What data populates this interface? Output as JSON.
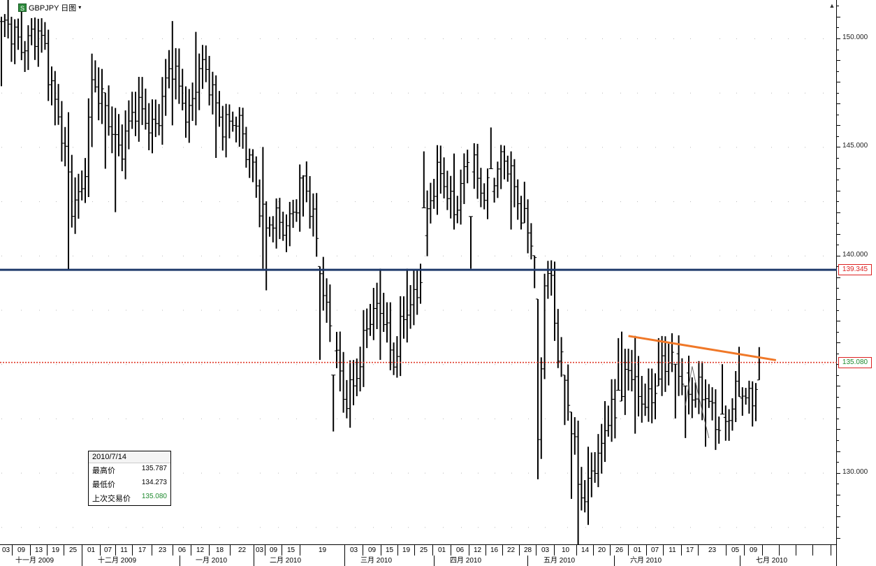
{
  "header": {
    "symbol_label": "GBPJPY 日图",
    "dropdown_caret": "▾",
    "icon_glyph": "S",
    "corner_icon": "▲"
  },
  "chart_data": {
    "type": "ohlc",
    "symbol": "GBPJPY",
    "period": "日图",
    "y_ticks": [
      "150.000",
      "145.000",
      "140.000",
      "130.000"
    ],
    "ylim": [
      126.4,
      152.4
    ],
    "horizontal_lines": [
      {
        "value": 139.345,
        "label": "139.345",
        "color": "#1f3a6b",
        "style": "solid"
      },
      {
        "value": 135.08,
        "label": "135.080",
        "color": "#e03a2a",
        "style": "dotted"
      }
    ],
    "trendline": {
      "start": {
        "day": 187,
        "price": 136.3
      },
      "end": {
        "day": 226,
        "price": 135.25
      },
      "color": "#f07828"
    },
    "x_day_labels": [
      "03",
      "09",
      "13",
      "19",
      "25",
      "01",
      "07",
      "11",
      "17",
      "23",
      "06",
      "12",
      "18",
      "22",
      "03",
      "09",
      "15",
      "19",
      "03",
      "09",
      "15",
      "19",
      "25",
      "01",
      "06",
      "12",
      "16",
      "22",
      "28",
      "03",
      "10",
      "14",
      "20",
      "26",
      "01",
      "07",
      "11",
      "17",
      "23",
      "05",
      "09"
    ],
    "x_month_labels": [
      "十一月 2009",
      "十二月 2009",
      "一月 2010",
      "二月 2010",
      "三月 2010",
      "四月 2010",
      "五月 2010",
      "六月 2010",
      "七月 2010"
    ],
    "bar_count": 226,
    "anchors": [
      [
        0,
        150.0
      ],
      [
        4,
        150.5
      ],
      [
        8,
        149.8
      ],
      [
        13,
        149.6
      ],
      [
        17,
        146.8
      ],
      [
        21,
        141.8
      ],
      [
        24,
        143.2
      ],
      [
        27,
        148.2
      ],
      [
        31,
        146.2
      ],
      [
        35,
        145.4
      ],
      [
        40,
        146.3
      ],
      [
        46,
        146.4
      ],
      [
        51,
        148.3
      ],
      [
        56,
        146.9
      ],
      [
        59,
        148.3
      ],
      [
        63,
        147.6
      ],
      [
        67,
        146.2
      ],
      [
        71,
        145.5
      ],
      [
        75,
        144.6
      ],
      [
        79,
        140.8
      ],
      [
        83,
        141.6
      ],
      [
        87,
        142.2
      ],
      [
        90,
        143.0
      ],
      [
        94,
        141.2
      ],
      [
        97,
        137.6
      ],
      [
        100,
        134.8
      ],
      [
        102,
        133.2
      ],
      [
        106,
        135.0
      ],
      [
        110,
        136.7
      ],
      [
        114,
        137.8
      ],
      [
        117,
        135.2
      ],
      [
        120,
        136.6
      ],
      [
        124,
        138.6
      ],
      [
        127,
        142.2
      ],
      [
        131,
        143.4
      ],
      [
        135,
        142.6
      ],
      [
        139,
        144.0
      ],
      [
        143,
        143.2
      ],
      [
        146,
        143.6
      ],
      [
        150,
        144.0
      ],
      [
        154,
        143.0
      ],
      [
        157,
        141.4
      ],
      [
        159,
        139.6
      ],
      [
        160,
        130.4
      ],
      [
        162,
        138.8
      ],
      [
        164,
        139.3
      ],
      [
        166,
        136.0
      ],
      [
        168,
        134.2
      ],
      [
        170,
        131.5
      ],
      [
        172,
        129.6
      ],
      [
        174,
        129.0
      ],
      [
        176,
        130.8
      ],
      [
        178,
        130.2
      ],
      [
        180,
        131.6
      ],
      [
        183,
        133.0
      ],
      [
        187,
        135.2
      ],
      [
        190,
        132.8
      ],
      [
        193,
        133.4
      ],
      [
        196,
        134.9
      ],
      [
        200,
        134.8
      ],
      [
        204,
        134.5
      ],
      [
        208,
        133.5
      ],
      [
        212,
        132.6
      ],
      [
        216,
        132.7
      ],
      [
        220,
        133.2
      ],
      [
        223,
        133.5
      ],
      [
        226,
        135.08
      ]
    ],
    "range_overrides": [
      [
        0,
        151.0,
        147.8
      ],
      [
        2,
        152.4,
        150.0
      ],
      [
        6,
        151.3,
        149.0
      ],
      [
        16,
        148.5,
        146.0
      ],
      [
        20,
        146.6,
        139.3
      ],
      [
        22,
        143.6,
        141.0
      ],
      [
        27,
        149.3,
        145.0
      ],
      [
        31,
        147.5,
        144.0
      ],
      [
        34,
        146.8,
        142.0
      ],
      [
        51,
        150.8,
        146.0
      ],
      [
        58,
        150.3,
        146.0
      ],
      [
        64,
        148.3,
        144.5
      ],
      [
        78,
        145.0,
        139.4
      ],
      [
        79,
        142.5,
        138.4
      ],
      [
        90,
        143.7,
        141.8
      ],
      [
        95,
        139.5,
        135.2
      ],
      [
        99,
        134.5,
        131.9
      ],
      [
        113,
        139.4,
        135.2
      ],
      [
        117,
        136.0,
        134.5
      ],
      [
        121,
        139.4,
        136.0
      ],
      [
        126,
        144.8,
        142.2
      ],
      [
        135,
        144.7,
        141.2
      ],
      [
        140,
        141.8,
        139.4
      ],
      [
        146,
        145.9,
        144.0
      ],
      [
        152,
        144.8,
        141.2
      ],
      [
        156,
        143.4,
        141.5
      ],
      [
        159,
        140.0,
        138.5
      ],
      [
        160,
        138.0,
        129.7
      ],
      [
        168,
        134.5,
        132.2
      ],
      [
        170,
        132.8,
        128.8
      ],
      [
        172,
        132.4,
        126.6
      ],
      [
        175,
        131.2,
        127.6
      ],
      [
        180,
        133.3,
        130.5
      ],
      [
        184,
        136.2,
        133.8
      ],
      [
        185,
        136.5,
        133.3
      ],
      [
        189,
        136.3,
        131.8
      ],
      [
        196,
        136.2,
        134.0
      ],
      [
        201,
        135.0,
        132.5
      ],
      [
        204,
        134.0,
        131.6
      ],
      [
        210,
        134.3,
        131.2
      ],
      [
        215,
        135.0,
        132.7
      ],
      [
        220,
        135.8,
        133.5
      ]
    ]
  },
  "info_box": {
    "date": "2010/7/14",
    "rows": [
      {
        "label": "最高价",
        "value": "135.787",
        "color": "#000000"
      },
      {
        "label": "最低价",
        "value": "134.273",
        "color": "#000000"
      },
      {
        "label": "上次交易价",
        "value": "135.080",
        "color": "#1e8a2e"
      }
    ]
  }
}
